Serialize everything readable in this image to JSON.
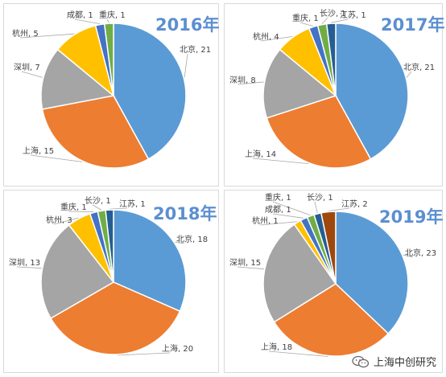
{
  "colors": {
    "title": "#5b8fd0",
    "palette": [
      "#5b9bd5",
      "#ed7d31",
      "#a5a5a5",
      "#ffc000",
      "#4472c4",
      "#70ad47",
      "#255e91",
      "#9e480e"
    ],
    "leader": "#a6a6a6",
    "label": "#404040"
  },
  "watermark": {
    "text": "上海中创研究",
    "icon": "wechat-icon"
  },
  "chart_data": [
    {
      "type": "pie",
      "title": "2016年",
      "slices": [
        {
          "label": "北京",
          "value": 21,
          "text": "北京, 21"
        },
        {
          "label": "上海",
          "value": 15,
          "text": "上海, 15"
        },
        {
          "label": "深圳",
          "value": 7,
          "text": "深圳, 7"
        },
        {
          "label": "杭州",
          "value": 5,
          "text": "杭州, 5"
        },
        {
          "label": "成都",
          "value": 1,
          "text": "成都, 1"
        },
        {
          "label": "重庆",
          "value": 1,
          "text": "重庆, 1"
        }
      ]
    },
    {
      "type": "pie",
      "title": "2017年",
      "slices": [
        {
          "label": "北京",
          "value": 21,
          "text": "北京, 21"
        },
        {
          "label": "上海",
          "value": 14,
          "text": "上海, 14"
        },
        {
          "label": "深圳",
          "value": 8,
          "text": "深圳, 8"
        },
        {
          "label": "杭州",
          "value": 4,
          "text": "杭州, 4"
        },
        {
          "label": "重庆",
          "value": 1,
          "text": "重庆, 1"
        },
        {
          "label": "长沙",
          "value": 1,
          "text": "长沙, 1"
        },
        {
          "label": "江苏",
          "value": 1,
          "text": "江苏, 1"
        }
      ]
    },
    {
      "type": "pie",
      "title": "2018年",
      "slices": [
        {
          "label": "北京",
          "value": 18,
          "text": "北京, 18"
        },
        {
          "label": "上海",
          "value": 20,
          "text": "上海, 20"
        },
        {
          "label": "深圳",
          "value": 13,
          "text": "深圳, 13"
        },
        {
          "label": "杭州",
          "value": 3,
          "text": "杭州, 3"
        },
        {
          "label": "重庆",
          "value": 1,
          "text": "重庆, 1"
        },
        {
          "label": "长沙",
          "value": 1,
          "text": "长沙, 1"
        },
        {
          "label": "江苏",
          "value": 1,
          "text": "江苏, 1"
        }
      ]
    },
    {
      "type": "pie",
      "title": "2019年",
      "slices": [
        {
          "label": "北京",
          "value": 23,
          "text": "北京, 23"
        },
        {
          "label": "上海",
          "value": 18,
          "text": "上海, 18"
        },
        {
          "label": "深圳",
          "value": 15,
          "text": "深圳, 15"
        },
        {
          "label": "杭州",
          "value": 1,
          "text": "杭州, 1"
        },
        {
          "label": "成都",
          "value": 1,
          "text": "成都, 1"
        },
        {
          "label": "重庆",
          "value": 1,
          "text": "重庆, 1"
        },
        {
          "label": "长沙",
          "value": 1,
          "text": "长沙, 1"
        },
        {
          "label": "江苏",
          "value": 2,
          "text": "江苏, 2"
        }
      ]
    }
  ]
}
